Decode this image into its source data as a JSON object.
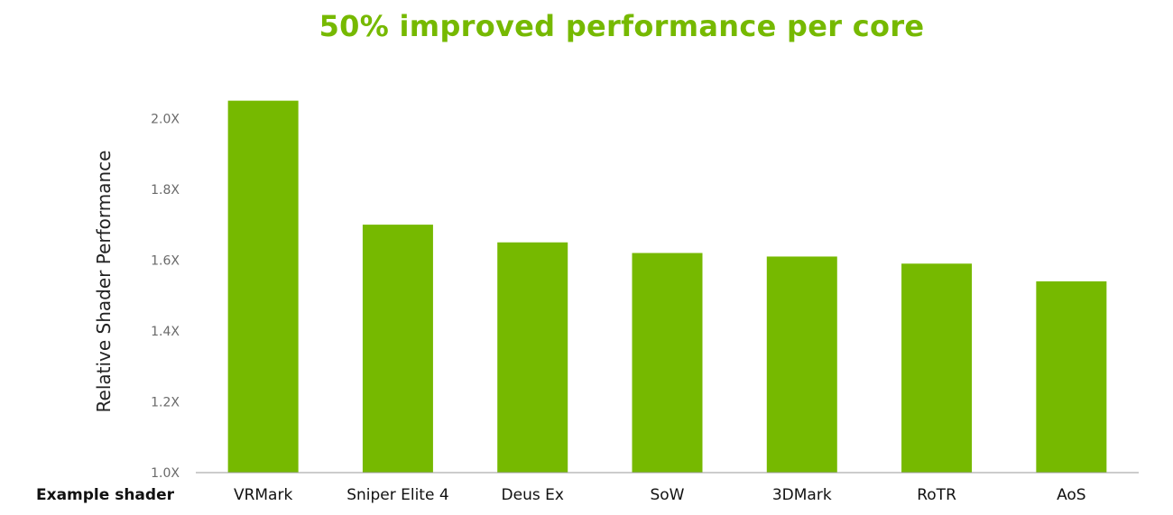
{
  "chart_data": {
    "type": "bar",
    "title": "50% improved performance per core",
    "xlabel": "Example shader",
    "ylabel": "Relative Shader Performance",
    "categories": [
      "VRMark",
      "Sniper Elite 4",
      "Deus Ex",
      "SoW",
      "3DMark",
      "RoTR",
      "AoS"
    ],
    "values": [
      2.05,
      1.7,
      1.65,
      1.62,
      1.61,
      1.59,
      1.54
    ],
    "yticks": [
      "1.0X",
      "1.2X",
      "1.4X",
      "1.6X",
      "1.8X",
      "2.0X"
    ],
    "ylim": [
      1.0,
      2.1
    ],
    "grid": false,
    "bar_color": "#76b900"
  }
}
